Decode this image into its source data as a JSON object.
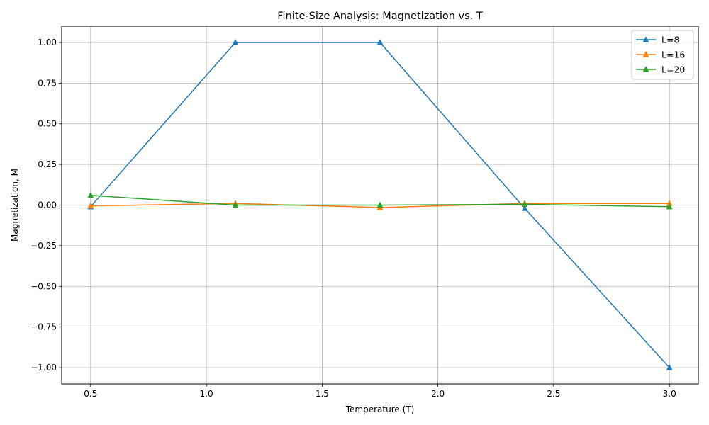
{
  "chart_data": {
    "type": "line",
    "title": "Finite-Size Analysis: Magnetization vs. T",
    "xlabel": "Temperature (T)",
    "ylabel": "Magnetization, M",
    "x": [
      0.5,
      1.125,
      1.75,
      2.375,
      3.0
    ],
    "xlim": [
      0.375,
      3.125
    ],
    "ylim": [
      -1.1,
      1.1
    ],
    "xticks": [
      0.5,
      1.0,
      1.5,
      2.0,
      2.5,
      3.0
    ],
    "xtick_labels": [
      "0.5",
      "1.0",
      "1.5",
      "2.0",
      "2.5",
      "3.0"
    ],
    "yticks": [
      1.0,
      0.75,
      0.5,
      0.25,
      0.0,
      -0.25,
      -0.5,
      -0.75,
      -1.0
    ],
    "ytick_labels": [
      "1.00",
      "0.75",
      "0.50",
      "0.25",
      "0.00",
      "−0.25",
      "−0.50",
      "−0.75",
      "−1.00"
    ],
    "grid": true,
    "legend_position": "top-right",
    "marker": "triangle-up",
    "series": [
      {
        "name": "L=8",
        "color": "#1f77b4",
        "values": [
          -0.01,
          1.0,
          1.0,
          -0.02,
          -1.0
        ]
      },
      {
        "name": "L=16",
        "color": "#ff7f0e",
        "values": [
          -0.005,
          0.01,
          -0.015,
          0.01,
          0.01
        ]
      },
      {
        "name": "L=20",
        "color": "#2ca02c",
        "values": [
          0.06,
          0.0,
          0.0,
          0.005,
          -0.01
        ]
      }
    ]
  }
}
